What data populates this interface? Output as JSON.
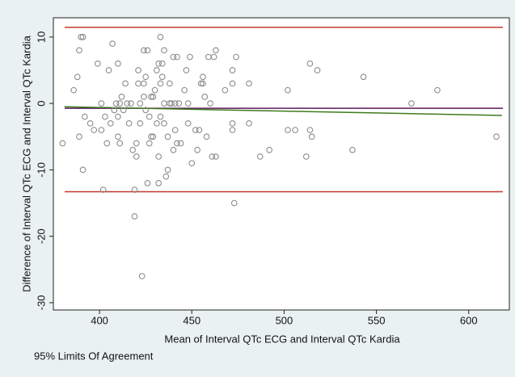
{
  "chart_data": {
    "type": "scatter",
    "x_label": "Mean of Interval QTc ECG and Interval QTc Kardia",
    "y_label": "Difference of Interval QTc ECG and Interval QTc Kardia",
    "caption": "95% Limits Of Agreement",
    "xlim": [
      375,
      622
    ],
    "xticks": [
      400,
      450,
      500,
      550,
      600
    ],
    "ylim": [
      -31.1,
      12.9
    ],
    "yticks": [
      -30,
      -20,
      -10,
      0,
      10
    ],
    "marker_color": "#8c8c8c",
    "reference_lines": [
      {
        "value": 11.46,
        "color": "#c0392b"
      },
      {
        "value": -13.3,
        "color": "#c0392b"
      },
      {
        "value": -0.73,
        "color": "#5b1a5e"
      }
    ],
    "fit_line": {
      "x": [
        381,
        618
      ],
      "y": [
        -0.5,
        -1.8
      ],
      "color": "#3f7a1c"
    },
    "x": [
      380,
      386,
      388,
      389,
      389,
      390,
      391,
      391,
      392,
      395,
      397,
      399,
      401,
      401,
      402,
      403,
      404,
      405,
      406,
      407,
      408,
      409,
      410,
      410,
      410,
      411,
      411,
      412,
      413,
      414,
      415,
      416,
      417,
      418,
      419,
      419,
      420,
      420,
      421,
      421,
      422,
      422,
      423,
      424,
      424,
      424,
      425,
      425,
      426,
      426,
      427,
      427,
      428,
      428,
      429,
      429,
      430,
      431,
      431,
      432,
      432,
      432,
      433,
      433,
      433,
      434,
      434,
      435,
      435,
      435,
      436,
      437,
      437,
      438,
      438,
      439,
      440,
      440,
      441,
      441,
      442,
      442,
      443,
      444,
      446,
      447,
      448,
      448,
      449,
      450,
      452,
      453,
      454,
      455,
      456,
      456,
      457,
      458,
      459,
      460,
      461,
      462,
      463,
      463,
      468,
      472,
      472,
      472,
      472,
      473,
      474,
      481,
      481,
      487,
      492,
      502,
      502,
      506,
      512,
      514,
      514,
      515,
      518,
      537,
      543,
      569,
      583,
      615
    ],
    "values": [
      -6,
      2,
      4,
      -5,
      8,
      10,
      -10,
      10,
      -2,
      -3,
      -4,
      6,
      -4,
      0,
      -13,
      -2,
      -6,
      5,
      -3,
      9,
      -1,
      0,
      -2,
      6,
      -5,
      0,
      -6,
      1,
      -1,
      3,
      0,
      -3,
      0,
      -7,
      -13,
      -17,
      -6,
      -8,
      3,
      5,
      -3,
      0,
      -26,
      1,
      8,
      3,
      -1,
      4,
      -12,
      8,
      -6,
      -2,
      1,
      -5,
      -5,
      1,
      2,
      -3,
      5,
      -12,
      6,
      -8,
      10,
      3,
      -2,
      6,
      4,
      8,
      0,
      -3,
      -11,
      -5,
      -10,
      3,
      0,
      0,
      7,
      -7,
      0,
      -4,
      -6,
      7,
      0,
      -6,
      2,
      5,
      -3,
      0,
      7,
      -9,
      -4,
      -7,
      -4,
      3,
      3,
      4,
      1,
      -5,
      7,
      0,
      -8,
      7,
      8,
      -8,
      2,
      5,
      -4,
      -3,
      3,
      -15,
      7,
      3,
      -3,
      -8,
      -7,
      -4,
      2,
      -4,
      -8,
      6,
      -4,
      -5,
      5,
      -7,
      4,
      0,
      2,
      -5
    ]
  }
}
